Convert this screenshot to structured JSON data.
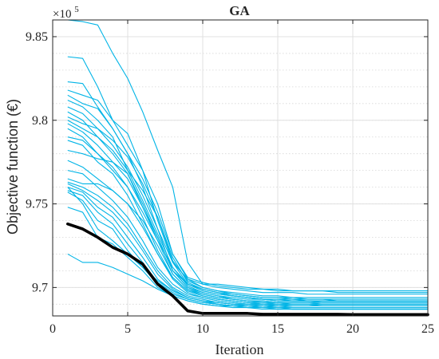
{
  "chart_data": {
    "type": "line",
    "title": "GA",
    "xlabel": "Iteration",
    "ylabel": "Objective function (€)",
    "exponent_base": "×10",
    "exponent_power": "5",
    "xlim": [
      0,
      25
    ],
    "ylim": [
      9.683,
      9.86
    ],
    "xticks": [
      0,
      5,
      10,
      15,
      20,
      25
    ],
    "xtick_labels": [
      "0",
      "5",
      "10",
      "15",
      "20",
      "25"
    ],
    "yticks": [
      9.7,
      9.75,
      9.8,
      9.85
    ],
    "ytick_labels": [
      "9.7",
      "9.75",
      "9.8",
      "9.85"
    ],
    "grid": true,
    "minor_grid_y": true,
    "colors": {
      "runs": "#00b4e6",
      "best": "#000000",
      "grid": "#e0e0e0",
      "axis": "#262626"
    },
    "x": [
      1,
      2,
      3,
      4,
      5,
      6,
      7,
      8,
      9,
      10,
      11,
      12,
      13,
      14,
      15,
      16,
      17,
      18,
      19,
      20,
      21,
      22,
      23,
      24,
      25
    ],
    "series": [
      {
        "values": [
          9.86,
          9.859,
          9.857,
          9.84,
          9.825,
          9.805,
          9.782,
          9.76,
          9.715,
          9.702,
          9.702,
          9.701,
          9.7,
          9.699,
          9.699,
          9.698,
          9.698,
          9.698,
          9.697,
          9.697,
          9.697,
          9.697,
          9.697,
          9.697,
          9.697
        ]
      },
      {
        "values": [
          9.838,
          9.837,
          9.82,
          9.8,
          9.785,
          9.77,
          9.75,
          9.72,
          9.705,
          9.7,
          9.698,
          9.696,
          9.695,
          9.694,
          9.694,
          9.693,
          9.693,
          9.693,
          9.692,
          9.692,
          9.692,
          9.692,
          9.692,
          9.692,
          9.692
        ]
      },
      {
        "values": [
          9.823,
          9.822,
          9.808,
          9.795,
          9.78,
          9.76,
          9.735,
          9.71,
          9.702,
          9.699,
          9.697,
          9.695,
          9.694,
          9.693,
          9.692,
          9.692,
          9.692,
          9.691,
          9.691,
          9.691,
          9.691,
          9.691,
          9.691,
          9.691,
          9.691
        ]
      },
      {
        "values": [
          9.818,
          9.815,
          9.812,
          9.8,
          9.792,
          9.77,
          9.74,
          9.715,
          9.705,
          9.702,
          9.7,
          9.699,
          9.698,
          9.697,
          9.697,
          9.697,
          9.696,
          9.696,
          9.696,
          9.696,
          9.696,
          9.696,
          9.696,
          9.696,
          9.696
        ]
      },
      {
        "values": [
          9.815,
          9.81,
          9.807,
          9.795,
          9.78,
          9.765,
          9.745,
          9.72,
          9.706,
          9.703,
          9.701,
          9.7,
          9.699,
          9.699,
          9.698,
          9.698,
          9.698,
          9.698,
          9.698,
          9.698,
          9.698,
          9.698,
          9.698,
          9.698,
          9.698
        ]
      },
      {
        "values": [
          9.812,
          9.808,
          9.8,
          9.79,
          9.77,
          9.758,
          9.742,
          9.718,
          9.703,
          9.699,
          9.697,
          9.696,
          9.695,
          9.694,
          9.694,
          9.694,
          9.693,
          9.693,
          9.693,
          9.693,
          9.693,
          9.693,
          9.693,
          9.693,
          9.693
        ]
      },
      {
        "values": [
          9.808,
          9.804,
          9.795,
          9.785,
          9.772,
          9.755,
          9.735,
          9.715,
          9.702,
          9.698,
          9.696,
          9.695,
          9.694,
          9.693,
          9.693,
          9.693,
          9.692,
          9.692,
          9.692,
          9.692,
          9.692,
          9.692,
          9.692,
          9.692,
          9.692
        ]
      },
      {
        "values": [
          9.805,
          9.8,
          9.79,
          9.78,
          9.768,
          9.748,
          9.728,
          9.712,
          9.701,
          9.697,
          9.695,
          9.693,
          9.692,
          9.692,
          9.691,
          9.691,
          9.691,
          9.69,
          9.69,
          9.69,
          9.69,
          9.69,
          9.69,
          9.69,
          9.69
        ]
      },
      {
        "values": [
          9.802,
          9.798,
          9.795,
          9.788,
          9.778,
          9.762,
          9.742,
          9.716,
          9.704,
          9.7,
          9.698,
          9.697,
          9.696,
          9.695,
          9.695,
          9.694,
          9.694,
          9.694,
          9.694,
          9.694,
          9.694,
          9.694,
          9.694,
          9.694,
          9.694
        ]
      },
      {
        "values": [
          9.8,
          9.795,
          9.79,
          9.782,
          9.77,
          9.752,
          9.732,
          9.712,
          9.702,
          9.698,
          9.696,
          9.695,
          9.694,
          9.693,
          9.693,
          9.692,
          9.692,
          9.692,
          9.692,
          9.692,
          9.692,
          9.692,
          9.692,
          9.692,
          9.692
        ]
      },
      {
        "values": [
          9.798,
          9.793,
          9.785,
          9.775,
          9.765,
          9.748,
          9.73,
          9.71,
          9.7,
          9.696,
          9.694,
          9.693,
          9.692,
          9.691,
          9.691,
          9.69,
          9.69,
          9.69,
          9.69,
          9.69,
          9.69,
          9.69,
          9.69,
          9.69,
          9.69
        ]
      },
      {
        "values": [
          9.795,
          9.79,
          9.78,
          9.77,
          9.76,
          9.745,
          9.728,
          9.708,
          9.699,
          9.695,
          9.693,
          9.692,
          9.691,
          9.69,
          9.69,
          9.689,
          9.689,
          9.689,
          9.689,
          9.689,
          9.689,
          9.689,
          9.689,
          9.689,
          9.689
        ]
      },
      {
        "values": [
          9.79,
          9.788,
          9.78,
          9.772,
          9.76,
          9.742,
          9.722,
          9.706,
          9.698,
          9.695,
          9.693,
          9.692,
          9.691,
          9.69,
          9.69,
          9.69,
          9.69,
          9.689,
          9.689,
          9.689,
          9.689,
          9.689,
          9.689,
          9.689,
          9.689
        ]
      },
      {
        "values": [
          9.788,
          9.785,
          9.775,
          9.768,
          9.755,
          9.738,
          9.72,
          9.705,
          9.697,
          9.694,
          9.692,
          9.691,
          9.69,
          9.689,
          9.689,
          9.688,
          9.688,
          9.688,
          9.688,
          9.688,
          9.688,
          9.688,
          9.688,
          9.688,
          9.688
        ]
      },
      {
        "values": [
          9.782,
          9.78,
          9.777,
          9.775,
          9.768,
          9.75,
          9.73,
          9.71,
          9.7,
          9.697,
          9.695,
          9.694,
          9.693,
          9.693,
          9.692,
          9.692,
          9.692,
          9.692,
          9.692,
          9.692,
          9.692,
          9.692,
          9.692,
          9.692,
          9.692
        ]
      },
      {
        "values": [
          9.776,
          9.772,
          9.765,
          9.758,
          9.75,
          9.736,
          9.72,
          9.706,
          9.698,
          9.695,
          9.693,
          9.692,
          9.691,
          9.691,
          9.69,
          9.69,
          9.69,
          9.69,
          9.69,
          9.69,
          9.69,
          9.69,
          9.69,
          9.69,
          9.69
        ]
      },
      {
        "values": [
          9.77,
          9.768,
          9.76,
          9.752,
          9.742,
          9.728,
          9.712,
          9.702,
          9.696,
          9.694,
          9.692,
          9.691,
          9.69,
          9.69,
          9.689,
          9.689,
          9.689,
          9.689,
          9.689,
          9.689,
          9.689,
          9.689,
          9.689,
          9.689,
          9.689
        ]
      },
      {
        "values": [
          9.765,
          9.762,
          9.762,
          9.758,
          9.75,
          9.74,
          9.725,
          9.708,
          9.699,
          9.696,
          9.694,
          9.693,
          9.692,
          9.692,
          9.691,
          9.691,
          9.691,
          9.691,
          9.691,
          9.691,
          9.691,
          9.691,
          9.691,
          9.691,
          9.691
        ]
      },
      {
        "values": [
          9.763,
          9.76,
          9.755,
          9.748,
          9.738,
          9.724,
          9.71,
          9.7,
          9.695,
          9.693,
          9.691,
          9.69,
          9.689,
          9.689,
          9.688,
          9.688,
          9.688,
          9.688,
          9.688,
          9.688,
          9.688,
          9.688,
          9.688,
          9.688,
          9.688
        ]
      },
      {
        "values": [
          9.762,
          9.758,
          9.752,
          9.745,
          9.735,
          9.722,
          9.708,
          9.699,
          9.694,
          9.692,
          9.69,
          9.689,
          9.689,
          9.688,
          9.688,
          9.687,
          9.687,
          9.687,
          9.687,
          9.687,
          9.687,
          9.687,
          9.687,
          9.687,
          9.687
        ]
      },
      {
        "values": [
          9.76,
          9.757,
          9.748,
          9.742,
          9.73,
          9.718,
          9.705,
          9.698,
          9.694,
          9.692,
          9.691,
          9.69,
          9.689,
          9.689,
          9.688,
          9.688,
          9.688,
          9.688,
          9.688,
          9.688,
          9.688,
          9.688,
          9.688,
          9.688,
          9.688
        ]
      },
      {
        "values": [
          9.758,
          9.755,
          9.745,
          9.738,
          9.726,
          9.715,
          9.703,
          9.697,
          9.693,
          9.691,
          9.69,
          9.689,
          9.688,
          9.688,
          9.687,
          9.687,
          9.687,
          9.687,
          9.687,
          9.687,
          9.687,
          9.687,
          9.687,
          9.687,
          9.687
        ]
      },
      {
        "values": [
          9.757,
          9.752,
          9.74,
          9.735,
          9.722,
          9.712,
          9.702,
          9.696,
          9.693,
          9.691,
          9.69,
          9.689,
          9.689,
          9.688,
          9.688,
          9.688,
          9.688,
          9.688,
          9.688,
          9.688,
          9.688,
          9.688,
          9.688,
          9.688,
          9.688
        ]
      },
      {
        "values": [
          9.748,
          9.745,
          9.73,
          9.726,
          9.718,
          9.71,
          9.7,
          9.695,
          9.692,
          9.69,
          9.689,
          9.688,
          9.688,
          9.687,
          9.687,
          9.687,
          9.687,
          9.687,
          9.687,
          9.687,
          9.687,
          9.687,
          9.687,
          9.687,
          9.687
        ]
      },
      {
        "values": [
          9.76,
          9.75,
          9.735,
          9.728,
          9.72,
          9.712,
          9.704,
          9.698,
          9.694,
          9.692,
          9.691,
          9.69,
          9.69,
          9.69,
          9.689,
          9.689,
          9.689,
          9.689,
          9.689,
          9.689,
          9.689,
          9.689,
          9.689,
          9.689,
          9.689
        ]
      },
      {
        "values": [
          9.72,
          9.715,
          9.715,
          9.712,
          9.708,
          9.704,
          9.699,
          9.695,
          9.692,
          9.69,
          9.689,
          9.689,
          9.688,
          9.688,
          9.688,
          9.688,
          9.688,
          9.688,
          9.688,
          9.688,
          9.688,
          9.688,
          9.688,
          9.688,
          9.688
        ]
      }
    ],
    "best_series": {
      "values": [
        9.738,
        9.735,
        9.73,
        9.724,
        9.72,
        9.714,
        9.702,
        9.695,
        9.686,
        9.6845,
        9.6845,
        9.6845,
        9.6845,
        9.684,
        9.684,
        9.684,
        9.684,
        9.684,
        9.684,
        9.6838,
        9.6838,
        9.6838,
        9.6838,
        9.6838,
        9.6838
      ]
    }
  }
}
